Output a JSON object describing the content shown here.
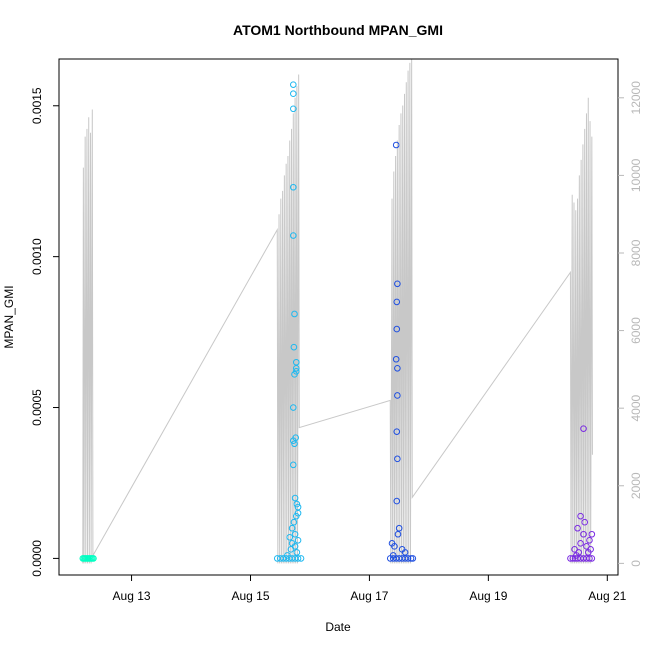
{
  "chart_data": {
    "type": "scatter",
    "title": "ATOM1 Northbound MPAN_GMI",
    "xlabel": "Date",
    "ylabel": "MPAN_GMI",
    "x_ticks": [
      {
        "value": 13,
        "label": "Aug 13"
      },
      {
        "value": 15,
        "label": "Aug 15"
      },
      {
        "value": 17,
        "label": "Aug 17"
      },
      {
        "value": 19,
        "label": "Aug 19"
      },
      {
        "value": 21,
        "label": "Aug 21"
      }
    ],
    "y_ticks": [
      {
        "value": 0.0,
        "label": "0.0000"
      },
      {
        "value": 0.0005,
        "label": "0.0005"
      },
      {
        "value": 0.001,
        "label": "0.0010"
      },
      {
        "value": 0.0015,
        "label": "0.0015"
      }
    ],
    "y2_ticks": [
      {
        "value": 0,
        "label": "0"
      },
      {
        "value": 2000,
        "label": "2000"
      },
      {
        "value": 4000,
        "label": "4000"
      },
      {
        "value": 6000,
        "label": "6000"
      },
      {
        "value": 8000,
        "label": "8000"
      },
      {
        "value": 10000,
        "label": "10000"
      },
      {
        "value": 12000,
        "label": "12000"
      }
    ],
    "xlim": [
      11.78,
      21.18
    ],
    "ylim": [
      -5.5e-05,
      0.001655
    ],
    "y2lim": [
      -300,
      13000
    ],
    "grid": false,
    "series": [
      {
        "color": "#00FFC3",
        "points": [
          [
            12.18,
            0.0
          ],
          [
            12.2,
            0.0
          ],
          [
            12.22,
            0.0
          ],
          [
            12.24,
            0.0
          ],
          [
            12.26,
            0.0
          ],
          [
            12.28,
            0.0
          ],
          [
            12.3,
            0.0
          ],
          [
            12.32,
            0.0
          ],
          [
            12.34,
            0.0
          ],
          [
            12.36,
            0.0
          ]
        ]
      },
      {
        "color": "#1EB8F0",
        "points": [
          [
            15.45,
            0.0
          ],
          [
            15.5,
            0.0
          ],
          [
            15.55,
            0.0
          ],
          [
            15.6,
            0.0
          ],
          [
            15.65,
            0.0
          ],
          [
            15.7,
            0.0
          ],
          [
            15.75,
            0.0
          ],
          [
            15.8,
            0.0
          ],
          [
            15.85,
            0.0
          ],
          [
            15.72,
            0.00157
          ],
          [
            15.72,
            0.00154
          ],
          [
            15.72,
            0.00149
          ],
          [
            15.72,
            0.00123
          ],
          [
            15.72,
            0.00107
          ],
          [
            15.74,
            0.00081
          ],
          [
            15.73,
            0.0007
          ],
          [
            15.77,
            0.00065
          ],
          [
            15.77,
            0.00063
          ],
          [
            15.77,
            0.00062
          ],
          [
            15.74,
            0.00061
          ],
          [
            15.72,
            0.0005
          ],
          [
            15.76,
            0.0004
          ],
          [
            15.72,
            0.00039
          ],
          [
            15.74,
            0.00038
          ],
          [
            15.72,
            0.00031
          ],
          [
            15.75,
            0.0002
          ],
          [
            15.78,
            0.00018
          ],
          [
            15.8,
            0.00017
          ],
          [
            15.8,
            0.00015
          ],
          [
            15.77,
            0.00014
          ],
          [
            15.73,
            0.00012
          ],
          [
            15.7,
            0.0001
          ],
          [
            15.75,
            8e-05
          ],
          [
            15.66,
            7e-05
          ],
          [
            15.8,
            6e-05
          ],
          [
            15.7,
            5e-05
          ],
          [
            15.75,
            4e-05
          ],
          [
            15.68,
            3e-05
          ],
          [
            15.78,
            2e-05
          ],
          [
            15.62,
            1e-05
          ]
        ]
      },
      {
        "color": "#1F4FE0",
        "points": [
          [
            17.35,
            0.0
          ],
          [
            17.4,
            0.0
          ],
          [
            17.45,
            0.0
          ],
          [
            17.5,
            0.0
          ],
          [
            17.55,
            0.0
          ],
          [
            17.6,
            0.0
          ],
          [
            17.65,
            0.0
          ],
          [
            17.7,
            0.0
          ],
          [
            17.73,
            0.0
          ],
          [
            17.45,
            0.00137
          ],
          [
            17.47,
            0.00091
          ],
          [
            17.46,
            0.00085
          ],
          [
            17.46,
            0.00076
          ],
          [
            17.45,
            0.00066
          ],
          [
            17.47,
            0.00063
          ],
          [
            17.47,
            0.00054
          ],
          [
            17.46,
            0.00042
          ],
          [
            17.47,
            0.00033
          ],
          [
            17.46,
            0.00019
          ],
          [
            17.5,
            0.0001
          ],
          [
            17.48,
            8e-05
          ],
          [
            17.38,
            5e-05
          ],
          [
            17.42,
            4e-05
          ],
          [
            17.55,
            3e-05
          ],
          [
            17.6,
            2e-05
          ],
          [
            17.4,
            1e-05
          ]
        ]
      },
      {
        "color": "#7A2BE2",
        "points": [
          [
            20.38,
            0.0
          ],
          [
            20.42,
            0.0
          ],
          [
            20.46,
            0.0
          ],
          [
            20.5,
            0.0
          ],
          [
            20.55,
            0.0
          ],
          [
            20.6,
            0.0
          ],
          [
            20.65,
            0.0
          ],
          [
            20.7,
            0.0
          ],
          [
            20.74,
            0.0
          ],
          [
            20.6,
            0.00043
          ],
          [
            20.55,
            0.00014
          ],
          [
            20.62,
            0.00012
          ],
          [
            20.5,
            0.0001
          ],
          [
            20.6,
            8e-05
          ],
          [
            20.74,
            8e-05
          ],
          [
            20.7,
            6e-05
          ],
          [
            20.55,
            5e-05
          ],
          [
            20.65,
            4e-05
          ],
          [
            20.45,
            3e-05
          ],
          [
            20.72,
            3e-05
          ],
          [
            20.52,
            2e-05
          ],
          [
            20.68,
            2e-05
          ],
          [
            20.48,
            1e-05
          ]
        ]
      }
    ],
    "secondary_line": {
      "color": "#c8c8c8",
      "axis": "right",
      "points": [
        [
          12.18,
          0
        ],
        [
          12.19,
          10200
        ],
        [
          12.2,
          0
        ],
        [
          12.22,
          11000
        ],
        [
          12.23,
          0
        ],
        [
          12.25,
          11200
        ],
        [
          12.26,
          0
        ],
        [
          12.28,
          11500
        ],
        [
          12.29,
          0
        ],
        [
          12.31,
          11100
        ],
        [
          12.32,
          0
        ],
        [
          12.34,
          11700
        ],
        [
          12.35,
          200
        ],
        [
          15.45,
          8600
        ],
        [
          15.46,
          0
        ],
        [
          15.48,
          9000
        ],
        [
          15.49,
          0
        ],
        [
          15.51,
          9400
        ],
        [
          15.52,
          0
        ],
        [
          15.54,
          9600
        ],
        [
          15.55,
          0
        ],
        [
          15.57,
          10000
        ],
        [
          15.58,
          0
        ],
        [
          15.6,
          10300
        ],
        [
          15.61,
          0
        ],
        [
          15.63,
          10500
        ],
        [
          15.64,
          0
        ],
        [
          15.66,
          10900
        ],
        [
          15.67,
          0
        ],
        [
          15.69,
          11200
        ],
        [
          15.7,
          0
        ],
        [
          15.72,
          11600
        ],
        [
          15.73,
          0
        ],
        [
          15.75,
          12000
        ],
        [
          15.76,
          0
        ],
        [
          15.78,
          12300
        ],
        [
          15.79,
          0
        ],
        [
          15.81,
          12600
        ],
        [
          15.82,
          3500
        ],
        [
          17.35,
          4200
        ],
        [
          17.36,
          0
        ],
        [
          17.38,
          9400
        ],
        [
          17.39,
          0
        ],
        [
          17.41,
          10100
        ],
        [
          17.42,
          0
        ],
        [
          17.44,
          10500
        ],
        [
          17.45,
          0
        ],
        [
          17.47,
          10900
        ],
        [
          17.48,
          0
        ],
        [
          17.5,
          11300
        ],
        [
          17.51,
          0
        ],
        [
          17.53,
          11600
        ],
        [
          17.54,
          0
        ],
        [
          17.56,
          11800
        ],
        [
          17.57,
          0
        ],
        [
          17.59,
          12100
        ],
        [
          17.6,
          0
        ],
        [
          17.62,
          12400
        ],
        [
          17.63,
          0
        ],
        [
          17.65,
          12700
        ],
        [
          17.66,
          0
        ],
        [
          17.68,
          12900
        ],
        [
          17.69,
          0
        ],
        [
          17.71,
          13000
        ],
        [
          17.72,
          1700
        ],
        [
          20.38,
          7500
        ],
        [
          20.39,
          0
        ],
        [
          20.41,
          9500
        ],
        [
          20.42,
          0
        ],
        [
          20.44,
          9300
        ],
        [
          20.45,
          0
        ],
        [
          20.47,
          9100
        ],
        [
          20.48,
          0
        ],
        [
          20.5,
          9400
        ],
        [
          20.51,
          0
        ],
        [
          20.53,
          10000
        ],
        [
          20.54,
          0
        ],
        [
          20.56,
          10400
        ],
        [
          20.57,
          0
        ],
        [
          20.59,
          10800
        ],
        [
          20.6,
          0
        ],
        [
          20.62,
          11200
        ],
        [
          20.63,
          0
        ],
        [
          20.65,
          11600
        ],
        [
          20.66,
          0
        ],
        [
          20.68,
          12000
        ],
        [
          20.69,
          0
        ],
        [
          20.71,
          11400
        ],
        [
          20.72,
          0
        ],
        [
          20.74,
          11000
        ],
        [
          20.75,
          2800
        ]
      ]
    }
  }
}
